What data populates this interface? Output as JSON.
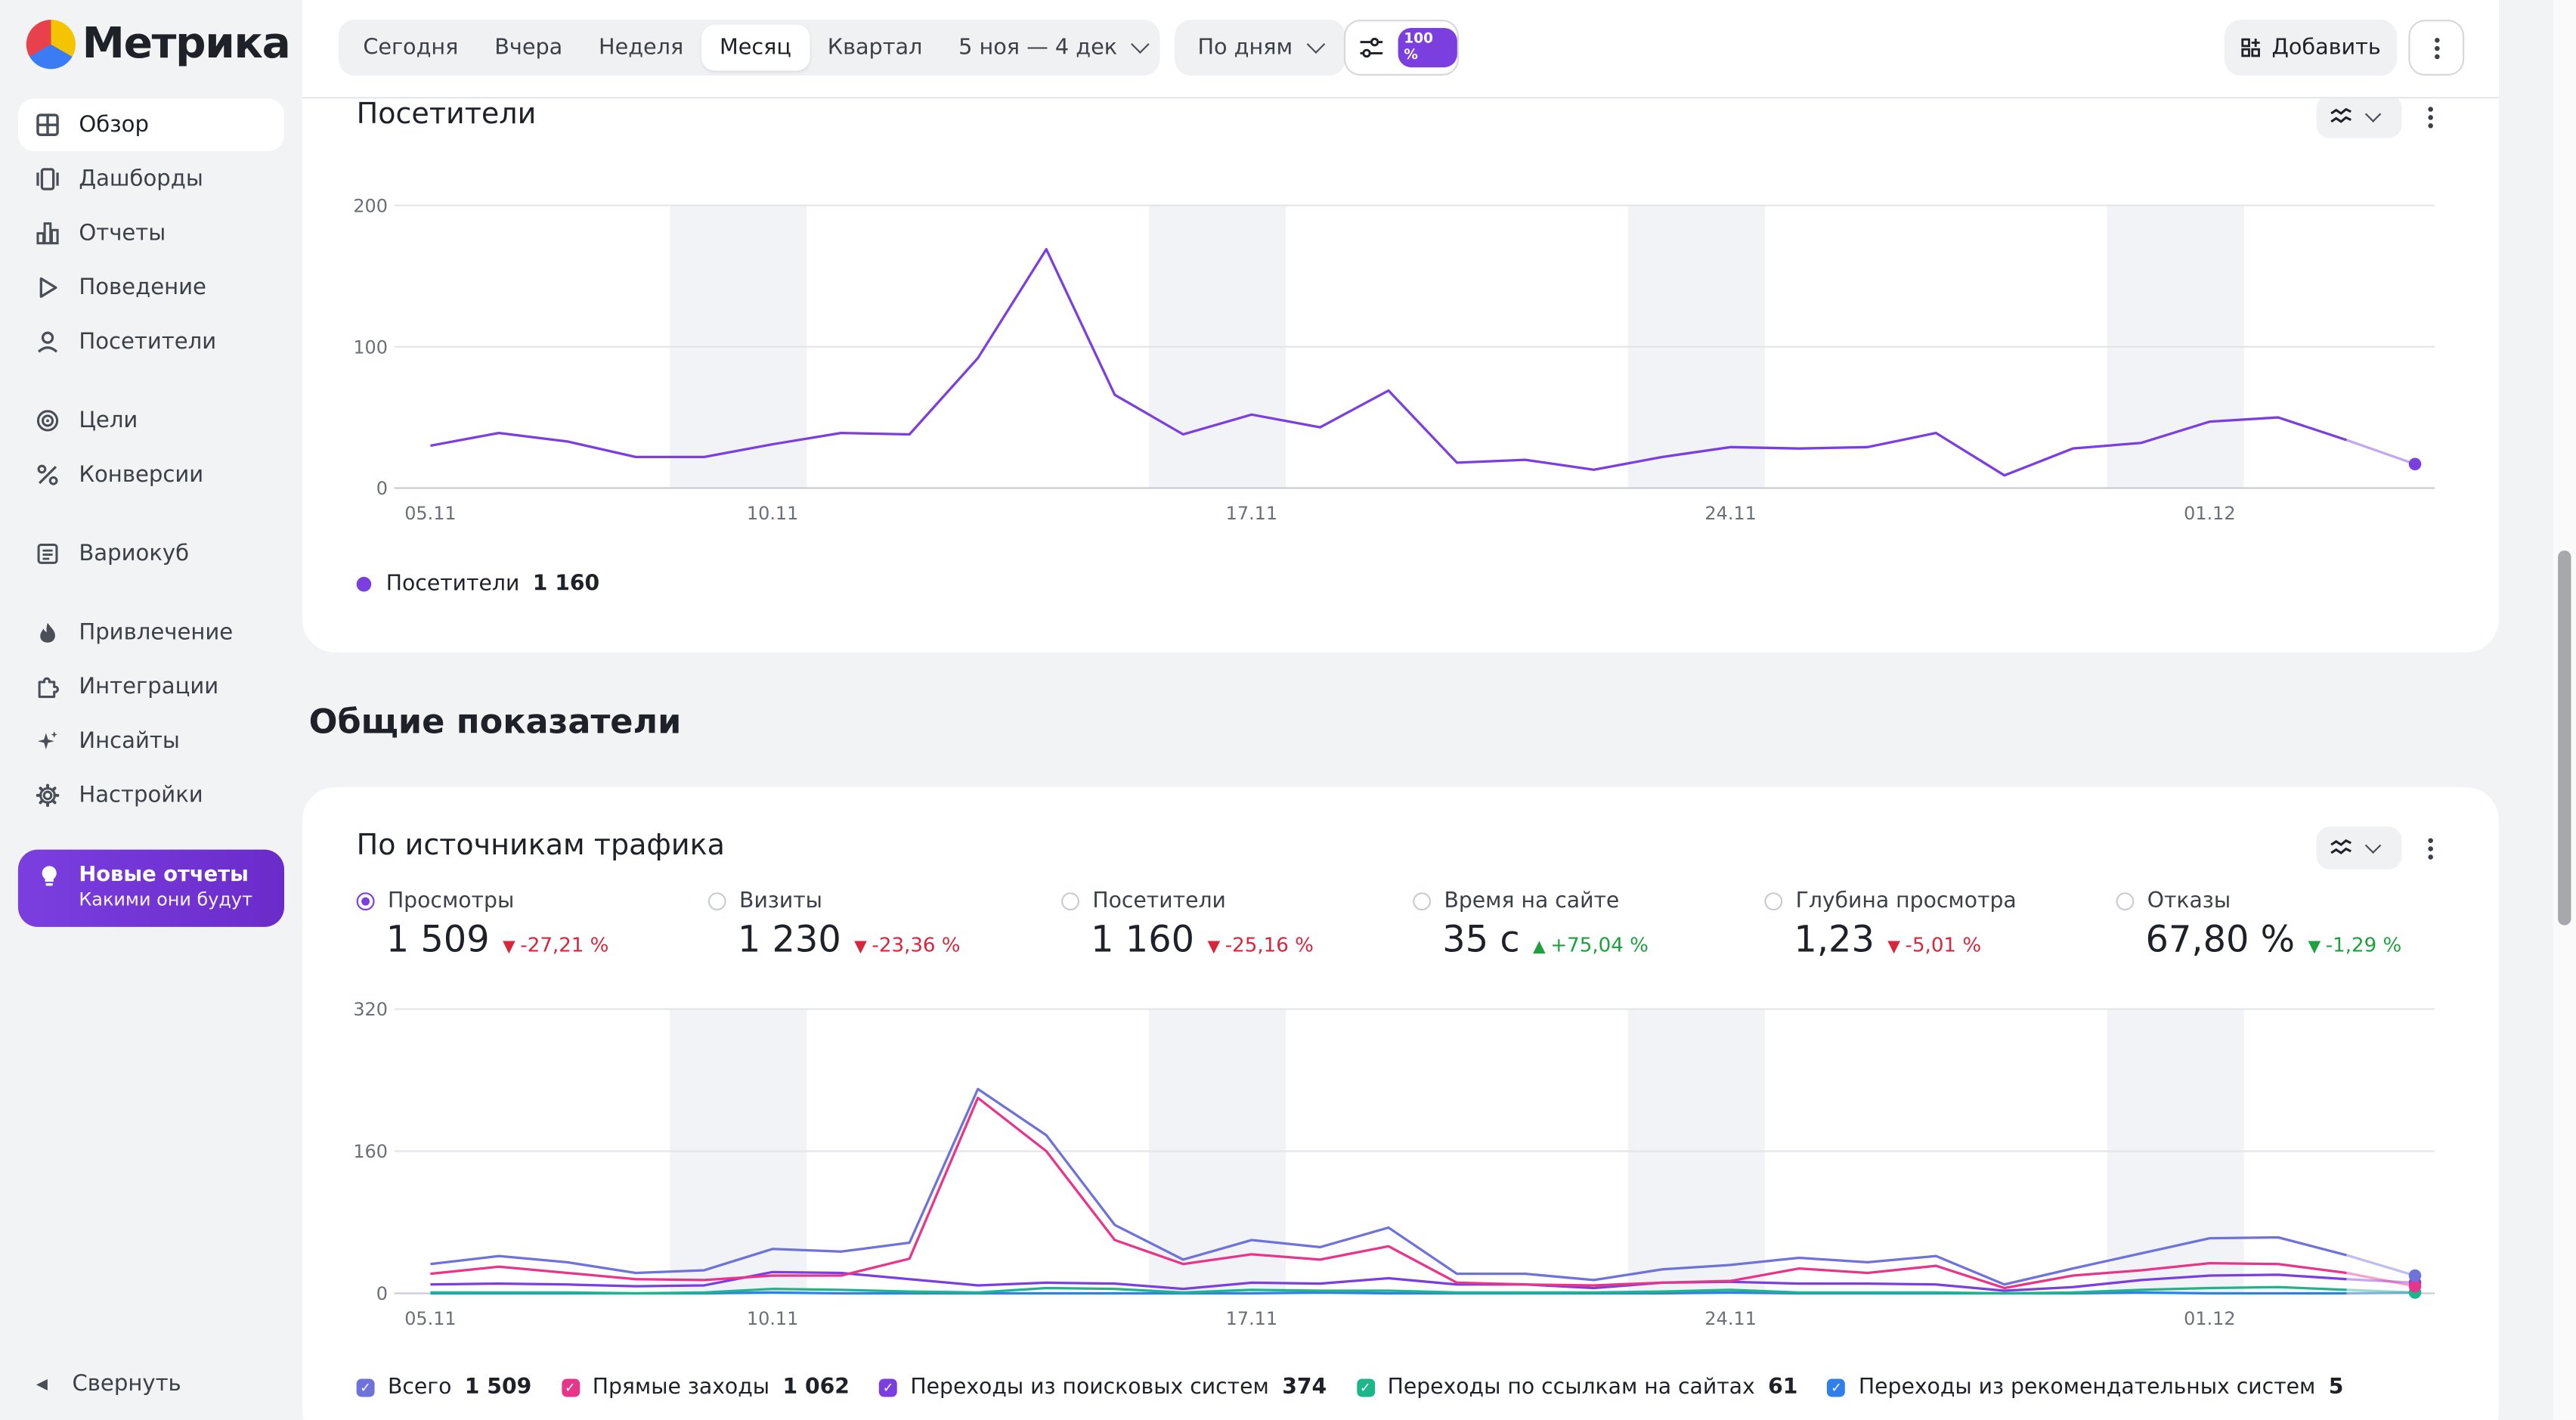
{
  "app": {
    "logo_text": "Метрика"
  },
  "sidebar": {
    "items": [
      {
        "label": "Обзор",
        "icon": "grid-icon",
        "active": true
      },
      {
        "label": "Дашборды",
        "icon": "dashboards-icon"
      },
      {
        "label": "Отчеты",
        "icon": "bar-chart-icon"
      },
      {
        "label": "Поведение",
        "icon": "play-icon"
      },
      {
        "label": "Посетители",
        "icon": "person-icon"
      },
      {
        "label": "Цели",
        "icon": "target-icon"
      },
      {
        "label": "Конверсии",
        "icon": "percent-icon"
      },
      {
        "label": "Вариокуб",
        "icon": "cube-icon"
      },
      {
        "label": "Привлечение",
        "icon": "flame-icon"
      },
      {
        "label": "Интеграции",
        "icon": "puzzle-icon"
      },
      {
        "label": "Инсайты",
        "icon": "sparkle-icon"
      },
      {
        "label": "Настройки",
        "icon": "gear-icon"
      }
    ],
    "promo": {
      "title": "Новые отчеты",
      "subtitle": "Какими они будут"
    },
    "collapse_label": "Свернуть"
  },
  "toolbar": {
    "periods": [
      "Сегодня",
      "Вчера",
      "Неделя",
      "Месяц",
      "Квартал"
    ],
    "selected_period": "Месяц",
    "date_range": "5 ноя — 4 дек",
    "grouping": "По дням",
    "sampling_badge": "100 %",
    "add_label": "Добавить"
  },
  "visitors_card": {
    "title": "Посетители",
    "legend": {
      "label": "Посетители",
      "value": "1 160"
    }
  },
  "section_title": "Общие показатели",
  "traffic_card": {
    "title": "По источникам трафика",
    "metrics": [
      {
        "label": "Просмотры",
        "value": "1 509",
        "delta": "-27,21 %",
        "trend": "down",
        "selected": true
      },
      {
        "label": "Визиты",
        "value": "1 230",
        "delta": "-23,36 %",
        "trend": "down"
      },
      {
        "label": "Посетители",
        "value": "1 160",
        "delta": "-25,16 %",
        "trend": "down"
      },
      {
        "label": "Время на сайте",
        "value": "35 с",
        "delta": "+75,04 %",
        "trend": "up"
      },
      {
        "label": "Глубина просмотра",
        "value": "1,23",
        "delta": "-5,01 %",
        "trend": "down"
      },
      {
        "label": "Отказы",
        "value": "67,80 %",
        "delta": "-1,29 %",
        "trend": "up"
      }
    ],
    "legend": [
      {
        "label": "Всего",
        "value": "1 509",
        "color": "#6e72d9"
      },
      {
        "label": "Прямые заходы",
        "value": "1 062",
        "color": "#e8358a"
      },
      {
        "label": "Переходы из поисковых систем",
        "value": "374",
        "color": "#7b3fe0"
      },
      {
        "label": "Переходы по ссылкам на сайтах",
        "value": "61",
        "color": "#1db68a"
      },
      {
        "label": "Переходы из рекомендательных систем",
        "value": "5",
        "color": "#2f80ed"
      }
    ]
  },
  "colors": {
    "accent": "#7b3fe0",
    "pink": "#e8358a",
    "green": "#1db68a",
    "blue": "#2f80ed",
    "total": "#6e72d9",
    "weekend": "#f2f3f6"
  },
  "chart_data": [
    {
      "type": "line",
      "title": "Посетители",
      "x": [
        "05.11",
        "06.11",
        "07.11",
        "08.11",
        "09.11",
        "10.11",
        "11.11",
        "12.11",
        "13.11",
        "14.11",
        "15.11",
        "16.11",
        "17.11",
        "18.11",
        "19.11",
        "20.11",
        "21.11",
        "22.11",
        "23.11",
        "24.11",
        "25.11",
        "26.11",
        "27.11",
        "28.11",
        "29.11",
        "30.11",
        "01.12",
        "02.12",
        "03.12",
        "04.12"
      ],
      "x_ticks": [
        "05.11",
        "10.11",
        "17.11",
        "24.11",
        "01.12"
      ],
      "y_ticks": [
        0,
        100,
        200
      ],
      "ylim": [
        0,
        200
      ],
      "weekends": [
        [
          "09.11",
          "10.11"
        ],
        [
          "16.11",
          "17.11"
        ],
        [
          "23.11",
          "24.11"
        ],
        [
          "30.11",
          "01.12"
        ]
      ],
      "series": [
        {
          "name": "Посетители",
          "color": "#7b3fe0",
          "values": [
            30,
            39,
            33,
            22,
            22,
            31,
            39,
            38,
            92,
            169,
            66,
            38,
            52,
            43,
            69,
            18,
            20,
            13,
            22,
            29,
            28,
            29,
            39,
            9,
            28,
            32,
            47,
            50,
            34,
            17
          ]
        }
      ]
    },
    {
      "type": "line",
      "title": "По источникам трафика",
      "x": [
        "05.11",
        "06.11",
        "07.11",
        "08.11",
        "09.11",
        "10.11",
        "11.11",
        "12.11",
        "13.11",
        "14.11",
        "15.11",
        "16.11",
        "17.11",
        "18.11",
        "19.11",
        "20.11",
        "21.11",
        "22.11",
        "23.11",
        "24.11",
        "25.11",
        "26.11",
        "27.11",
        "28.11",
        "29.11",
        "30.11",
        "01.12",
        "02.12",
        "03.12",
        "04.12"
      ],
      "x_ticks": [
        "05.11",
        "10.11",
        "17.11",
        "24.11",
        "01.12"
      ],
      "y_ticks": [
        0,
        160,
        320
      ],
      "ylim": [
        0,
        320
      ],
      "weekends": [
        [
          "09.11",
          "10.11"
        ],
        [
          "16.11",
          "17.11"
        ],
        [
          "23.11",
          "24.11"
        ],
        [
          "30.11",
          "01.12"
        ]
      ],
      "series": [
        {
          "name": "Всего",
          "color": "#6e72d9",
          "values": [
            33,
            42,
            35,
            23,
            26,
            50,
            47,
            57,
            230,
            178,
            77,
            38,
            60,
            52,
            74,
            22,
            22,
            15,
            27,
            32,
            40,
            35,
            42,
            10,
            28,
            45,
            62,
            63,
            43,
            20
          ]
        },
        {
          "name": "Прямые заходы",
          "color": "#e8358a",
          "values": [
            22,
            30,
            23,
            16,
            15,
            20,
            20,
            39,
            220,
            160,
            60,
            33,
            44,
            38,
            53,
            12,
            10,
            9,
            12,
            14,
            28,
            23,
            31,
            6,
            20,
            26,
            34,
            33,
            23,
            8
          ]
        },
        {
          "name": "Переходы из поисковых систем",
          "color": "#7b3fe0",
          "values": [
            10,
            11,
            10,
            8,
            9,
            24,
            23,
            16,
            9,
            12,
            11,
            5,
            12,
            11,
            17,
            10,
            10,
            6,
            12,
            13,
            11,
            11,
            10,
            3,
            7,
            15,
            20,
            21,
            16,
            12
          ]
        },
        {
          "name": "Переходы по ссылкам на сайтах",
          "color": "#1db68a",
          "values": [
            1,
            1,
            1,
            0,
            1,
            5,
            4,
            2,
            1,
            6,
            5,
            1,
            4,
            3,
            3,
            1,
            1,
            1,
            2,
            4,
            1,
            1,
            1,
            0,
            1,
            4,
            6,
            7,
            4,
            1
          ]
        },
        {
          "name": "Переходы из рекомендательных систем",
          "color": "#2f80ed",
          "values": [
            0,
            0,
            0,
            0,
            0,
            1,
            0,
            0,
            0,
            0,
            0,
            0,
            0,
            1,
            0,
            0,
            0,
            0,
            0,
            1,
            0,
            0,
            0,
            0,
            0,
            1,
            0,
            0,
            0,
            1
          ]
        }
      ]
    }
  ]
}
